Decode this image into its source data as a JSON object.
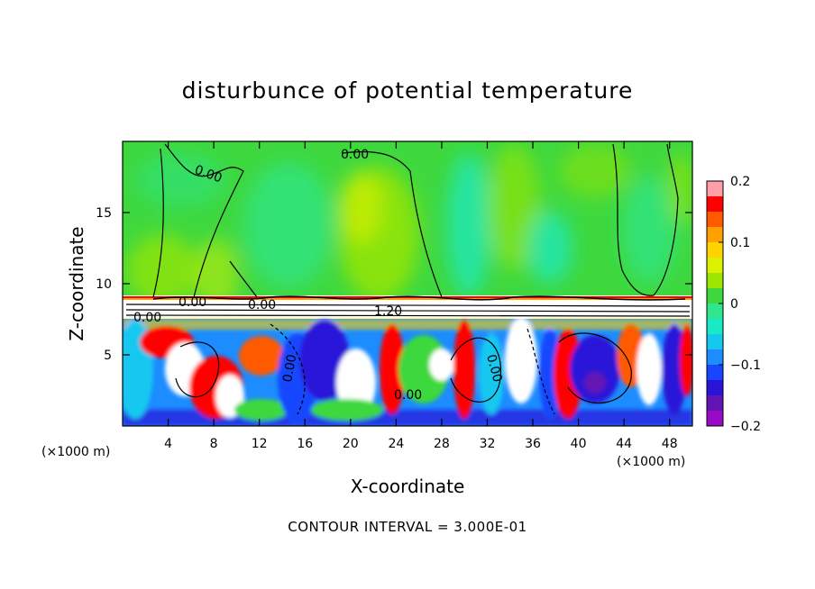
{
  "chart_data": {
    "type": "heatmap",
    "title": "disturbunce of potential temperature",
    "xlabel": "X-coordinate",
    "ylabel": "Z-coordinate",
    "x_unit": "(×1000 m)",
    "x_unit_right": "(×1000 m)",
    "xlim": [
      0,
      50
    ],
    "ylim": [
      0,
      20
    ],
    "x_ticks": [
      4,
      8,
      12,
      16,
      20,
      24,
      28,
      32,
      36,
      40,
      44,
      48
    ],
    "y_ticks": [
      5,
      10,
      15
    ],
    "colorbar": {
      "ticks": [
        0.2,
        0.1,
        0,
        -0.1,
        -0.2
      ],
      "tick_labels": [
        "0.2",
        "0.1",
        "0",
        "−0.1",
        "−0.2"
      ],
      "colors": [
        "#ff9ea8",
        "#ff0000",
        "#ff5a00",
        "#ffa000",
        "#ffd200",
        "#dcf000",
        "#9ce600",
        "#3ed83e",
        "#2ee68c",
        "#18eac8",
        "#16c8f0",
        "#1c8cff",
        "#1846ff",
        "#2a14d8",
        "#6414b4",
        "#9a0ac6"
      ]
    },
    "contour_labels": [
      "0.00",
      "0.00",
      "0.00",
      "1.20",
      "0.00",
      "0.00",
      "0.00",
      "0.00",
      "0.00"
    ],
    "footer": "CONTOUR INTERVAL = 3.000E-01"
  }
}
